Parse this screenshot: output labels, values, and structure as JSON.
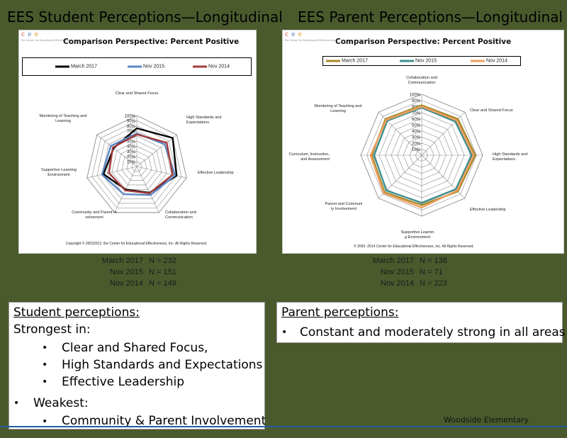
{
  "slide": {
    "left_title": "EES Student Perceptions—Longitudinal",
    "right_title": "EES Parent Perceptions—Longitudinal",
    "footer": "Woodside Elementary"
  },
  "logo": {
    "letters": [
      "c",
      "e",
      "e"
    ],
    "tagline": "The Center for Educational Effectiveness",
    "colors": [
      "#d9534f",
      "#5b7fc0",
      "#e5a13a"
    ]
  },
  "chart_data": [
    {
      "type": "radar",
      "title": "Comparison Perspective: Percent Positive",
      "axes": [
        "Clear and Shared Focus",
        "High Standards and Expectations",
        "Effective Leadership",
        "Collaboration and Communication",
        "Community and Parent Involvement",
        "Supportive Learning Environment",
        "Monitoring of Teaching and Learning"
      ],
      "rlim": [
        0,
        100
      ],
      "ticks": [
        "10%",
        "20%",
        "30%",
        "40%",
        "50%",
        "60%",
        "70%",
        "80%",
        "90%",
        "100%"
      ],
      "series": [
        {
          "name": "March 2017",
          "color": "#000000",
          "values": [
            75,
            90,
            80,
            57,
            50,
            67,
            58
          ]
        },
        {
          "name": "Nov 2015",
          "color": "#5b87c5",
          "values": [
            65,
            70,
            77,
            62,
            60,
            70,
            65
          ]
        },
        {
          "name": "Nov 2014",
          "color": "#a33b3b",
          "values": [
            63,
            75,
            72,
            58,
            52,
            56,
            60
          ]
        }
      ],
      "legend": "top",
      "copyright": "Copyright © 20032012, the Center for Educational Effectiveness, Inc.  All Rights Reserved.",
      "counts": [
        {
          "label": "March 2017",
          "n": "N =  232"
        },
        {
          "label": "Nov 2015",
          "n": "N =  151"
        },
        {
          "label": "Nov 2014",
          "n": "N =  149"
        }
      ]
    },
    {
      "type": "radar",
      "title": "Comparison Perspective: Percent Positive",
      "axes": [
        "Collaboration and Communication",
        "Clear and Shared Focus",
        "High Standards and Expectations",
        "Effective Leadership",
        "Supportive Learning Environment",
        "Parent and Community Involvement",
        "Curriculum, Instruction, and Assessment",
        "Monitoring of Teaching and Learning"
      ],
      "rlim": [
        0,
        100
      ],
      "ticks": [
        "10%",
        "20%",
        "30%",
        "40%",
        "50%",
        "60%",
        "70%",
        "80%",
        "90%",
        "100%"
      ],
      "series": [
        {
          "name": "March 2017",
          "color": "#a8892a",
          "values": [
            82,
            84,
            88,
            84,
            82,
            86,
            82,
            84
          ]
        },
        {
          "name": "Nov 2015",
          "color": "#3f8f8f",
          "values": [
            78,
            78,
            82,
            79,
            78,
            82,
            78,
            80
          ]
        },
        {
          "name": "Nov 2014",
          "color": "#f0a060",
          "values": [
            80,
            81,
            85,
            82,
            86,
            88,
            84,
            82
          ]
        }
      ],
      "legend": "top",
      "copyright": "© 2003 -2014 Center for Educational Effectiveness, Inc.  All Rights Reserved.",
      "counts": [
        {
          "label": "March 2017",
          "n": "N =  138"
        },
        {
          "label": "Nov 2015",
          "n": "N =  71"
        },
        {
          "label": "Nov 2014",
          "n": "N =  223"
        }
      ]
    }
  ],
  "student_box": {
    "heading": "Student perceptions:",
    "strongest_label": "Strongest in:",
    "strongest": [
      "Clear and Shared Focus,",
      "High Standards and Expectations",
      "Effective Leadership"
    ],
    "weakest_label": "Weakest:",
    "weakest": [
      "Community & Parent Involvement"
    ]
  },
  "parent_box": {
    "heading": "Parent perceptions:",
    "items": [
      "Constant and moderately strong in all areas"
    ]
  }
}
